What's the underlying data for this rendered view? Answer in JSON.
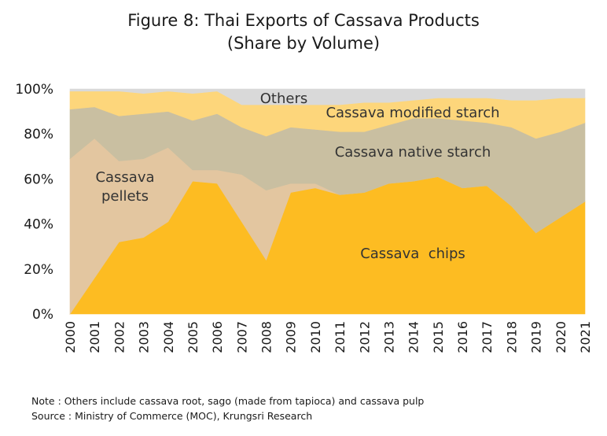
{
  "chart_data": {
    "type": "area",
    "stacked": true,
    "percent": true,
    "title": "Figure 8: Thai Exports of Cassava Products",
    "subtitle": "(Share by Volume)",
    "x": [
      "2000",
      "2001",
      "2002",
      "2003",
      "2004",
      "2005",
      "2006",
      "2007",
      "2008",
      "2009",
      "2010",
      "2011",
      "2012",
      "2013",
      "2014",
      "2015",
      "2016",
      "2017",
      "2018",
      "2019",
      "2020",
      "2021"
    ],
    "ylim": [
      0,
      100
    ],
    "yticks": [
      "0%",
      "20%",
      "40%",
      "60%",
      "80%",
      "100%"
    ],
    "grid": false,
    "series": [
      {
        "name": "Cassava  chips",
        "color": "#FDBC22",
        "values": [
          0,
          16,
          32,
          34,
          41,
          59,
          58,
          41,
          24,
          54,
          56,
          53,
          54,
          58,
          59,
          61,
          56,
          57,
          48,
          36,
          43,
          50
        ]
      },
      {
        "name": "Cassava\npellets",
        "color": "#E3C6A0",
        "values": [
          69,
          62,
          36,
          35,
          33,
          5,
          6,
          21,
          31,
          4,
          2,
          0,
          0,
          0,
          0,
          0,
          0,
          0,
          0,
          0,
          0,
          0
        ]
      },
      {
        "name": "Cassava native starch",
        "color": "#C9BFA1",
        "values": [
          22,
          14,
          20,
          20,
          16,
          22,
          25,
          21,
          24,
          25,
          24,
          28,
          27,
          26,
          28,
          26,
          30,
          28,
          35,
          42,
          38,
          35
        ]
      },
      {
        "name": "Cassava modified starch",
        "color": "#FDD67B",
        "values": [
          8,
          7,
          11,
          9,
          9,
          12,
          10,
          10,
          14,
          10,
          11,
          12,
          13,
          10,
          8,
          9,
          10,
          11,
          12,
          17,
          15,
          11
        ]
      },
      {
        "name": "Others",
        "color": "#D9D9D9",
        "values": [
          1,
          1,
          1,
          2,
          1,
          2,
          1,
          7,
          7,
          7,
          7,
          7,
          6,
          6,
          5,
          4,
          4,
          4,
          5,
          5,
          4,
          4
        ]
      }
    ]
  },
  "note": "Note : Others include cassava root, sago (made from tapioca) and cassava pulp",
  "source": "Source : Ministry of Commerce (MOC), Krungsri Research"
}
